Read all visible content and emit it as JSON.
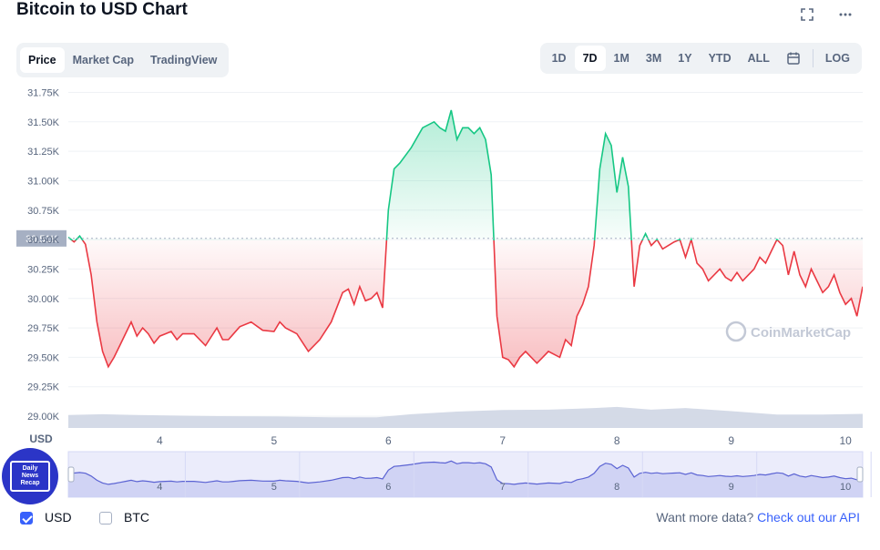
{
  "page": {
    "title": "Bitcoin to USD Chart"
  },
  "icons": {
    "fullscreen": "fullscreen-icon",
    "more": "more-options-icon",
    "calendar": "calendar-icon"
  },
  "tabs": [
    "Price",
    "Market Cap",
    "TradingView"
  ],
  "active_tab": "Price",
  "ranges": [
    "1D",
    "7D",
    "1M",
    "3M",
    "1Y",
    "YTD",
    "ALL"
  ],
  "active_range": "7D",
  "log_label": "LOG",
  "colors": {
    "up": "#16c784",
    "down": "#ea3943",
    "volume": "#cfd6e4",
    "brush": "#5b63d3",
    "accent": "#3861fb"
  },
  "chart_data": {
    "type": "line",
    "currency_label": "USD",
    "ylim": [
      28900,
      31800
    ],
    "y_ticks": [
      "31.75K",
      "31.50K",
      "31.25K",
      "31.00K",
      "30.75K",
      "30.50K",
      "30.25K",
      "30.00K",
      "29.75K",
      "29.50K",
      "29.25K",
      "29.00K"
    ],
    "y_tick_values": [
      31750,
      31500,
      31250,
      31000,
      30750,
      30500,
      30250,
      30000,
      29750,
      29500,
      29250,
      29000
    ],
    "xlim": [
      3.2,
      10.15
    ],
    "x_ticks": [
      "4",
      "5",
      "6",
      "7",
      "8",
      "9",
      "10"
    ],
    "x_tick_values": [
      4,
      5,
      6,
      7,
      8,
      9,
      10
    ],
    "reference_value": 30510,
    "reference_label": "30.51K",
    "series": [
      {
        "x": [
          3.2,
          3.25,
          3.3,
          3.35,
          3.4,
          3.45,
          3.5,
          3.55,
          3.6,
          3.65,
          3.7,
          3.75,
          3.8,
          3.85,
          3.9,
          3.95,
          4.0,
          4.05,
          4.1,
          4.15,
          4.2,
          4.3,
          4.4,
          4.5,
          4.55,
          4.6,
          4.7,
          4.8,
          4.9,
          5.0,
          5.05,
          5.1,
          5.2,
          5.3,
          5.4,
          5.5,
          5.6,
          5.65,
          5.7,
          5.75,
          5.8,
          5.85,
          5.9,
          5.95,
          6.0,
          6.05,
          6.1,
          6.2,
          6.3,
          6.4,
          6.45,
          6.5,
          6.55,
          6.6,
          6.65,
          6.7,
          6.75,
          6.8,
          6.85,
          6.9,
          6.95,
          7.0,
          7.05,
          7.1,
          7.15,
          7.2,
          7.3,
          7.35,
          7.4,
          7.5,
          7.55,
          7.6,
          7.65,
          7.7,
          7.75,
          7.8,
          7.85,
          7.9,
          7.95,
          8.0,
          8.05,
          8.1,
          8.15,
          8.2,
          8.25,
          8.3,
          8.35,
          8.4,
          8.45,
          8.5,
          8.55,
          8.6,
          8.65,
          8.7,
          8.75,
          8.8,
          8.85,
          8.9,
          8.95,
          9.0,
          9.05,
          9.1,
          9.15,
          9.2,
          9.25,
          9.3,
          9.35,
          9.4,
          9.45,
          9.5,
          9.55,
          9.6,
          9.65,
          9.7,
          9.75,
          9.8,
          9.85,
          9.9,
          9.95,
          10.0,
          10.05,
          10.1,
          10.15
        ],
        "y": [
          30520,
          30480,
          30530,
          30460,
          30200,
          29800,
          29550,
          29420,
          29500,
          29600,
          29700,
          29800,
          29680,
          29750,
          29700,
          29620,
          29680,
          29700,
          29720,
          29650,
          29700,
          29700,
          29600,
          29750,
          29650,
          29650,
          29760,
          29800,
          29730,
          29720,
          29800,
          29750,
          29700,
          29550,
          29650,
          29800,
          30050,
          30080,
          29950,
          30100,
          29980,
          30000,
          30050,
          29920,
          30750,
          31100,
          31150,
          31280,
          31450,
          31500,
          31450,
          31420,
          31600,
          31350,
          31450,
          31450,
          31400,
          31450,
          31350,
          31050,
          29850,
          29500,
          29480,
          29420,
          29500,
          29550,
          29450,
          29500,
          29550,
          29500,
          29650,
          29600,
          29850,
          29950,
          30100,
          30450,
          31100,
          31400,
          31300,
          30900,
          31200,
          30950,
          30100,
          30450,
          30550,
          30450,
          30500,
          30420,
          30450,
          30480,
          30500,
          30350,
          30500,
          30300,
          30250,
          30150,
          30200,
          30250,
          30180,
          30150,
          30220,
          30150,
          30200,
          30250,
          30350,
          30300,
          30400,
          30500,
          30450,
          30200,
          30400,
          30200,
          30100,
          30250,
          30150,
          30050,
          30100,
          30200,
          30050,
          29950,
          30000,
          29850,
          30100
        ]
      }
    ],
    "volume": {
      "x": [
        3.2,
        3.5,
        3.8,
        4.0,
        4.5,
        5.0,
        5.5,
        5.9,
        6.2,
        6.6,
        7.0,
        7.4,
        7.8,
        8.0,
        8.3,
        8.6,
        9.0,
        9.4,
        9.8,
        10.15
      ],
      "y": [
        0.34,
        0.36,
        0.34,
        0.33,
        0.31,
        0.3,
        0.28,
        0.28,
        0.36,
        0.43,
        0.47,
        0.48,
        0.52,
        0.55,
        0.48,
        0.52,
        0.44,
        0.35,
        0.35,
        0.37
      ]
    },
    "navigator": {
      "x_ticks": [
        "4",
        "5",
        "6",
        "7",
        "8",
        "9",
        "10"
      ]
    },
    "watermark": "CoinMarketCap"
  },
  "footer": {
    "checkboxes": [
      {
        "label": "USD",
        "checked": true
      },
      {
        "label": "BTC",
        "checked": false
      }
    ],
    "more_text": "Want more data?",
    "more_link": "Check out our API"
  },
  "badge": {
    "line1": "Daily",
    "line2": "News",
    "line3": "Recap"
  }
}
